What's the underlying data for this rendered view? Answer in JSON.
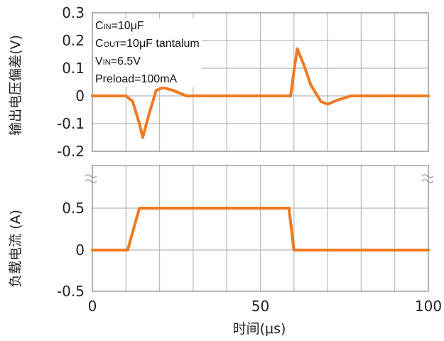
{
  "chart_data": [
    {
      "type": "line",
      "panel": "top",
      "ylabel": "输出电压偏差(V)",
      "ylim": [
        -0.2,
        0.3
      ],
      "yticks": [
        "0.3",
        "0.2",
        "0.1",
        "0",
        "-0.1",
        "-0.2"
      ],
      "xlim": [
        0,
        100
      ],
      "grid": true,
      "color": "#f07a22",
      "annotations": {
        "cin": {
          "main": "C",
          "sub": "IN",
          "rest": "=10μF"
        },
        "cout": {
          "main": "C",
          "sub": "OUT",
          "rest": "=10μF tantalum"
        },
        "vin": {
          "main": "V",
          "sub": "IN",
          "rest": "=6.5V"
        },
        "preload": "Preload=100mA"
      },
      "series": [
        {
          "x": [
            0,
            10,
            12,
            14,
            15,
            17,
            19,
            21,
            24,
            28,
            30,
            58,
            59,
            60,
            61,
            63,
            65,
            68,
            70,
            73,
            77,
            80,
            100
          ],
          "y": [
            0,
            0,
            -0.02,
            -0.1,
            -0.15,
            -0.06,
            0.02,
            0.03,
            0.02,
            0.0,
            0.0,
            0.0,
            0.0,
            0.09,
            0.17,
            0.11,
            0.04,
            -0.02,
            -0.03,
            -0.015,
            0.0,
            0.0,
            0.0
          ]
        }
      ]
    },
    {
      "type": "line",
      "panel": "bottom",
      "ylabel": "负载电流 (A)",
      "ylim": [
        -0.5,
        0.5
      ],
      "yticks": [
        "0.5",
        "0",
        "-0.5"
      ],
      "xlim": [
        0,
        100
      ],
      "xticks": [
        "0",
        "50",
        "100"
      ],
      "xlabel": "时间(μs)",
      "grid": true,
      "color": "#f07a22",
      "series": [
        {
          "x": [
            0,
            10.5,
            14,
            58.5,
            60,
            100
          ],
          "y": [
            0,
            0,
            0.5,
            0.5,
            0,
            0
          ]
        }
      ]
    }
  ]
}
